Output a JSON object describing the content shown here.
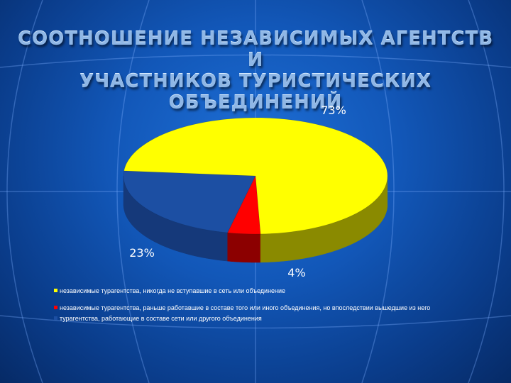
{
  "slide": {
    "title_line1": "СООТНОШЕНИЕ НЕЗАВИСИМЫХ АГЕНТСТВ И",
    "title_line2": "УЧАСТНИКОВ ТУРИСТИЧЕСКИХ ОБЪЕДИНЕНИЙ",
    "background_color": "#1257b8"
  },
  "chart_data": {
    "type": "pie",
    "title": "СООТНОШЕНИЕ НЕЗАВИСИМЫХ АГЕНТСТВ И УЧАСТНИКОВ ТУРИСТИЧЕСКИХ ОБЪЕДИНЕНИЙ",
    "three_d": true,
    "legend_position": "bottom",
    "slices": [
      {
        "label": "независимые турагентства, никогда не вступавшие в сеть или объединение",
        "value": 73,
        "value_label": "73%",
        "color": "#ffff00",
        "side_color": "#8a8a00"
      },
      {
        "label": " независимые турагентства, раньше работавшие в составе того или иного объединения, но впоследствии вышедшие из него",
        "value": 4,
        "value_label": "4%",
        "color": "#ff0000",
        "side_color": "#8c0000"
      },
      {
        "label": "турагентства, работающие в составе сети или другого объединения",
        "value": 23,
        "value_label": "23%",
        "color": "#1c4fa3",
        "side_color": "#15397a"
      }
    ]
  }
}
